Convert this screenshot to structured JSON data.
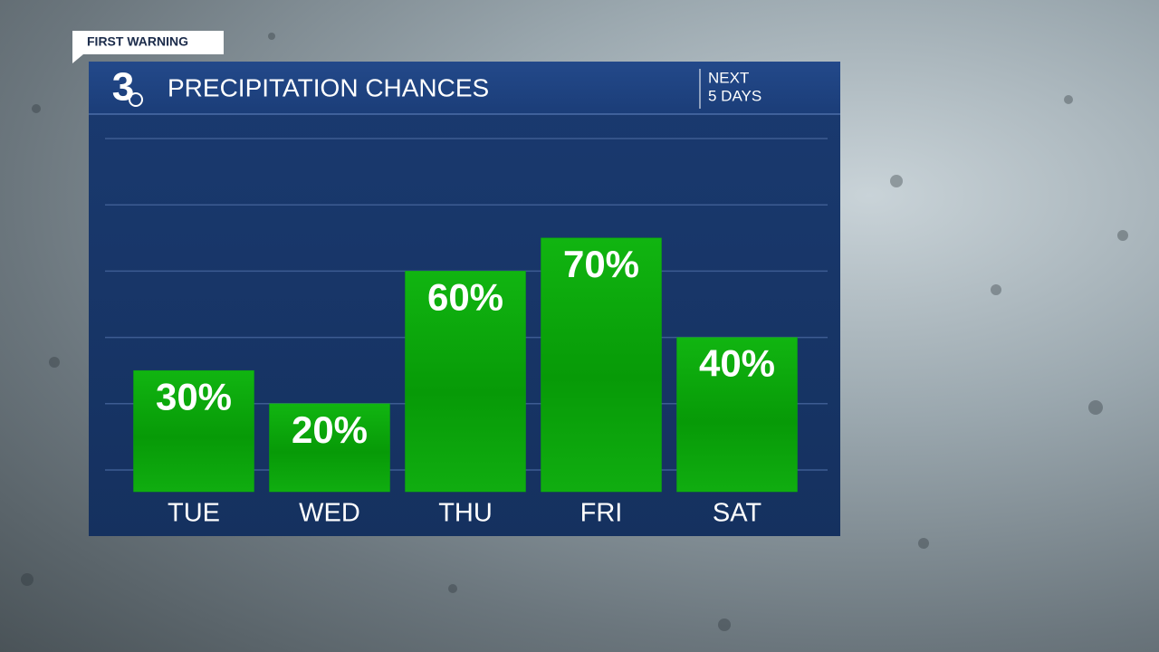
{
  "banner": "FIRST WARNING",
  "logo": "3",
  "chart_data": {
    "type": "bar",
    "title": "PRECIPITATION CHANCES",
    "subtitle": [
      "NEXT",
      "5 DAYS"
    ],
    "categories": [
      "TUE",
      "WED",
      "THU",
      "FRI",
      "SAT"
    ],
    "values": [
      30,
      20,
      60,
      70,
      40
    ],
    "value_labels": [
      "30%",
      "20%",
      "60%",
      "70%",
      "40%"
    ],
    "color": "#0ba80b",
    "ylim": [
      0,
      100
    ],
    "yticks": [
      0,
      20,
      40,
      60,
      80,
      100
    ],
    "grid": true
  }
}
